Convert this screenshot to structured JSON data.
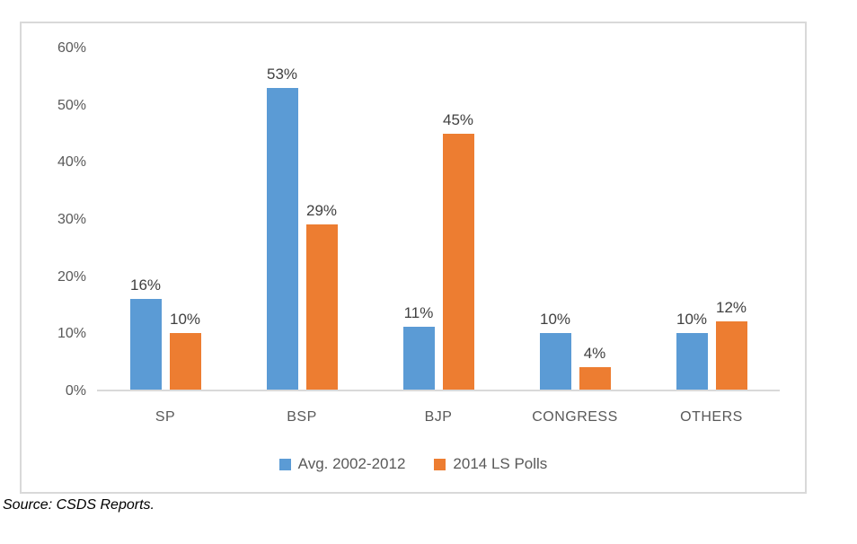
{
  "chart_data": {
    "type": "bar",
    "categories": [
      "SP",
      "BSP",
      "BJP",
      "CONGRESS",
      "OTHERS"
    ],
    "series": [
      {
        "name": "Avg. 2002-2012",
        "color": "#5B9BD5",
        "values": [
          16,
          53,
          11,
          10,
          10
        ]
      },
      {
        "name": "2014 LS Polls",
        "color": "#ED7D31",
        "values": [
          10,
          29,
          45,
          4,
          12
        ]
      }
    ],
    "value_suffix": "%",
    "data_labels": [
      "16%",
      "10%",
      "53%",
      "29%",
      "11%",
      "45%",
      "10%",
      "4%",
      "10%",
      "12%"
    ],
    "title": "",
    "xlabel": "",
    "ylabel": "",
    "ylim": [
      0,
      60
    ],
    "yticks": [
      "0%",
      "10%",
      "20%",
      "30%",
      "40%",
      "50%",
      "60%"
    ],
    "grid": false,
    "legend_position": "bottom"
  },
  "source_note": "Source: CSDS Reports.",
  "colors": {
    "series1": "#5B9BD5",
    "series2": "#ED7D31",
    "axis_line": "#D9D9D9",
    "chart_border": "#D9D9D9",
    "tick_text": "#595959",
    "data_label_text": "#404040"
  }
}
